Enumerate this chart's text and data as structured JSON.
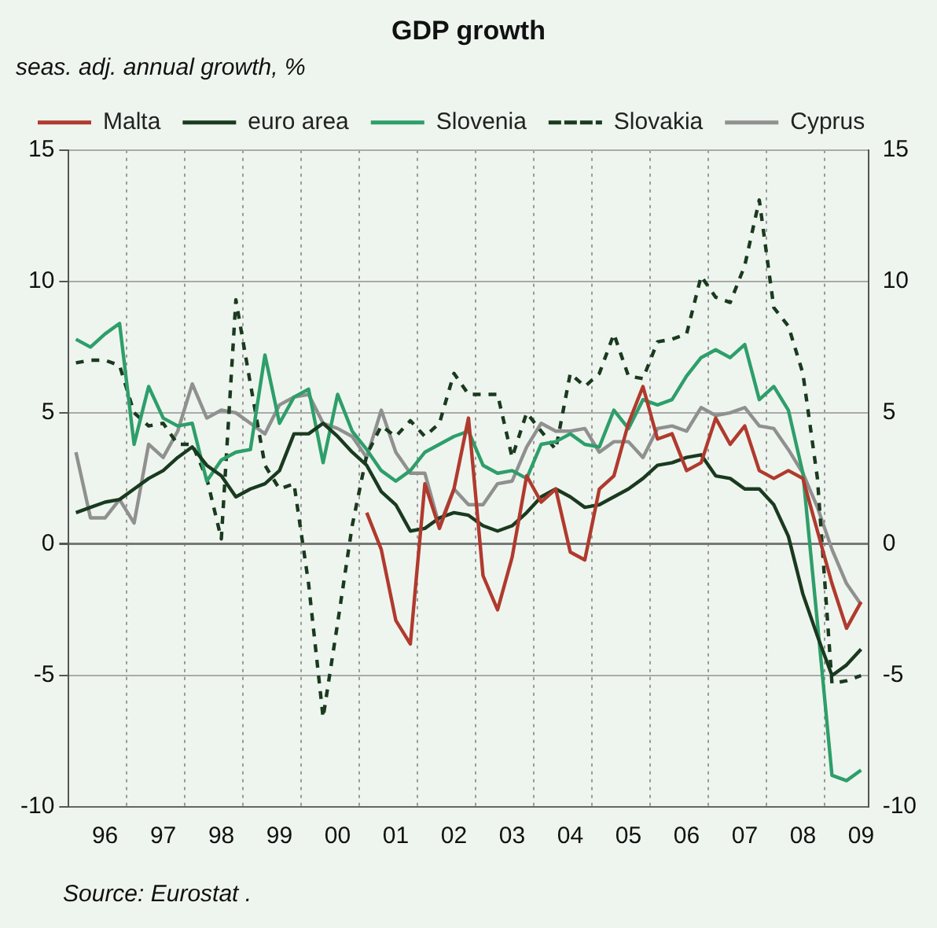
{
  "chart_data": {
    "type": "line",
    "title": "GDP growth",
    "subtitle": "seas. adj. annual growth, %",
    "annotations": [
      "Source: Eurostat ."
    ],
    "categories": [
      null,
      null,
      "96",
      null,
      null,
      null,
      "97",
      null,
      null,
      null,
      "98",
      null,
      null,
      null,
      "99",
      null,
      null,
      null,
      "00",
      null,
      null,
      null,
      "01",
      null,
      null,
      null,
      "02",
      null,
      null,
      null,
      "03",
      null,
      null,
      null,
      "04",
      null,
      null,
      null,
      "05",
      null,
      null,
      null,
      "06",
      null,
      null,
      null,
      "07",
      null,
      null,
      null,
      "08",
      null,
      null,
      null,
      "09"
    ],
    "series": [
      {
        "name": "Malta",
        "color": "#b03a2e",
        "line_style": "solid",
        "values": [
          null,
          null,
          null,
          null,
          null,
          null,
          null,
          null,
          null,
          null,
          null,
          null,
          null,
          null,
          null,
          null,
          null,
          null,
          null,
          null,
          1.2,
          -0.2,
          -2.9,
          -3.8,
          2.3,
          0.6,
          2.1,
          4.8,
          -1.2,
          -2.5,
          -0.5,
          2.6,
          1.6,
          2.1,
          -0.3,
          -0.6,
          2.1,
          2.6,
          4.6,
          6.0,
          4.0,
          4.2,
          2.8,
          3.1,
          4.8,
          3.8,
          4.5,
          2.8,
          2.5,
          2.8,
          2.5,
          0.5,
          -1.5,
          -3.2,
          -2.2
        ]
      },
      {
        "name": "euro area",
        "color": "#1a3a1f",
        "line_style": "solid",
        "values": [
          1.2,
          1.4,
          1.6,
          1.7,
          2.1,
          2.5,
          2.8,
          3.3,
          3.7,
          3.0,
          2.6,
          1.8,
          2.1,
          2.3,
          2.8,
          4.2,
          4.2,
          4.6,
          4.1,
          3.5,
          3.0,
          2.0,
          1.5,
          0.5,
          0.6,
          1.0,
          1.2,
          1.1,
          0.7,
          0.5,
          0.7,
          1.2,
          1.8,
          2.1,
          1.8,
          1.4,
          1.5,
          1.8,
          2.1,
          2.5,
          3.0,
          3.1,
          3.3,
          3.4,
          2.6,
          2.5,
          2.1,
          2.1,
          1.5,
          0.3,
          -1.9,
          -3.5,
          -5.0,
          -4.6,
          -4.0
        ]
      },
      {
        "name": "Slovenia",
        "color": "#2e9e6a",
        "line_style": "solid",
        "values": [
          7.8,
          7.5,
          8.0,
          8.4,
          3.8,
          6.0,
          4.8,
          4.5,
          4.6,
          2.4,
          3.2,
          3.5,
          3.6,
          7.2,
          4.6,
          5.6,
          5.9,
          3.1,
          5.7,
          4.3,
          3.6,
          2.8,
          2.4,
          2.8,
          3.5,
          3.8,
          4.1,
          4.3,
          3.0,
          2.7,
          2.8,
          2.5,
          3.8,
          3.9,
          4.2,
          3.8,
          3.7,
          5.1,
          4.4,
          5.5,
          5.3,
          5.5,
          6.4,
          7.1,
          7.4,
          7.1,
          7.6,
          5.5,
          6.0,
          5.1,
          2.7,
          -3.0,
          -8.8,
          -9.0,
          -8.6
        ]
      },
      {
        "name": "Slovakia",
        "color": "#1a3a1f",
        "line_style": "dashed",
        "values": [
          6.9,
          7.0,
          7.0,
          6.8,
          5.0,
          4.5,
          4.6,
          3.8,
          3.8,
          2.5,
          0.2,
          9.3,
          6.1,
          3.0,
          2.1,
          2.3,
          -1.5,
          -6.6,
          -3.0,
          0.7,
          3.4,
          4.5,
          4.1,
          4.7,
          4.1,
          4.6,
          6.5,
          5.7,
          5.7,
          5.7,
          3.3,
          5.0,
          4.3,
          3.6,
          6.5,
          6.0,
          6.5,
          8.0,
          6.4,
          6.3,
          7.7,
          7.8,
          8.0,
          10.2,
          9.4,
          9.2,
          10.6,
          13.1,
          9.0,
          8.3,
          6.5,
          2.5,
          -5.3,
          -5.2,
          -5.0
        ]
      },
      {
        "name": "Cyprus",
        "color": "#909090",
        "line_style": "solid",
        "values": [
          3.5,
          1.0,
          1.0,
          1.7,
          0.8,
          3.8,
          3.3,
          4.3,
          6.1,
          4.8,
          5.1,
          5.0,
          4.6,
          4.2,
          5.3,
          5.6,
          5.7,
          4.6,
          4.4,
          4.1,
          3.3,
          5.1,
          3.5,
          2.7,
          2.7,
          0.7,
          2.1,
          1.5,
          1.5,
          2.3,
          2.4,
          3.7,
          4.6,
          4.3,
          4.3,
          4.4,
          3.5,
          3.9,
          3.9,
          3.3,
          4.4,
          4.5,
          4.3,
          5.2,
          4.9,
          5.0,
          5.2,
          4.5,
          4.4,
          3.6,
          2.7,
          1.4,
          -0.2,
          -1.5,
          -2.3
        ]
      }
    ],
    "ylim": [
      -10,
      15
    ],
    "yticks": [
      -10,
      -5,
      0,
      5,
      10,
      15
    ],
    "y2lim": [
      -10,
      15
    ],
    "y2ticks": [
      -10,
      -5,
      0,
      5,
      10,
      15
    ],
    "grid": true,
    "legend": "top left",
    "marker": "none"
  }
}
